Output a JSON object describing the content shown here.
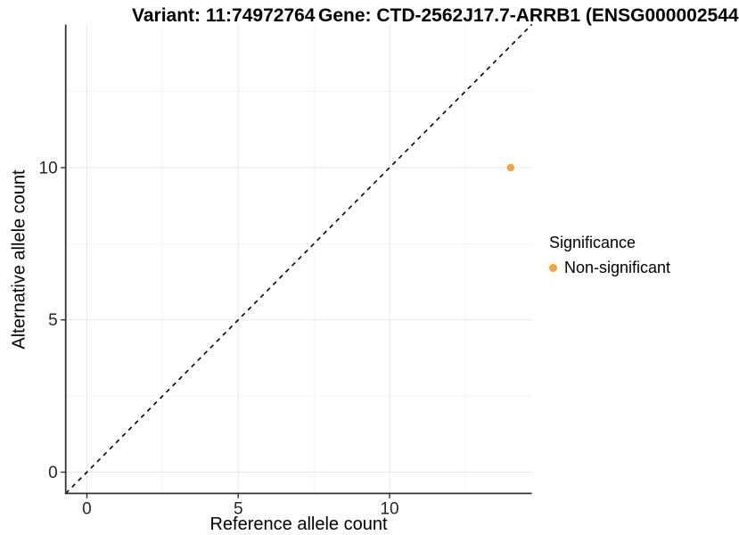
{
  "titles": {
    "variant": "Variant: 11:74972764",
    "gene": "Gene: CTD-2562J17.7-ARRB1 (ENSG000002544"
  },
  "legend": {
    "title": "Significance",
    "items": [
      {
        "label": "Non-significant",
        "color": "#F9A13C"
      }
    ]
  },
  "chart_data": {
    "type": "scatter",
    "xlabel": "Reference allele count",
    "ylabel": "Alternative allele count",
    "xlim": [
      -0.7,
      14.7
    ],
    "ylim": [
      -0.7,
      14.7
    ],
    "x_ticks": [
      0,
      5,
      10
    ],
    "y_ticks": [
      0,
      5,
      10
    ],
    "x_minor_ticks": [
      2.5,
      7.5,
      12.5
    ],
    "y_minor_ticks": [
      2.5,
      7.5,
      12.5
    ],
    "grid": "major+minor",
    "legend_position": "right",
    "identity_line": {
      "type": "abline",
      "slope": 1,
      "intercept": 0,
      "style": "dashed",
      "color": "#000000"
    },
    "series": [
      {
        "name": "Non-significant",
        "color": "#F9A13C",
        "points": [
          {
            "x": 14,
            "y": 10
          }
        ]
      }
    ]
  },
  "style": {
    "axis_color": "#333333",
    "tick_label_color": "#262626",
    "major_grid_color": "#E8E8E8",
    "minor_grid_color": "#F3F3F3",
    "point_color": "#F9A13C"
  }
}
